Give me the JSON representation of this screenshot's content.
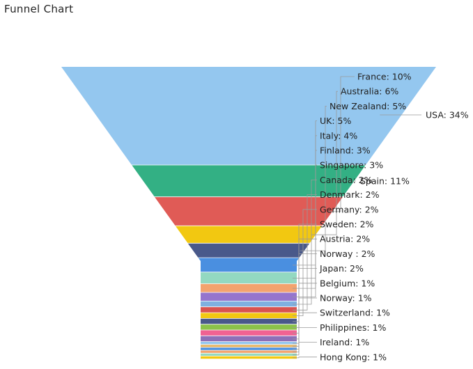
{
  "chart_data": {
    "type": "funnel",
    "title": "Funnel Chart",
    "data_labels": true,
    "legend": "none",
    "segments": [
      {
        "name": "USA",
        "value": 34,
        "label": "USA: 34%",
        "color": "#94c7ef"
      },
      {
        "name": "Spain",
        "value": 11,
        "label": "Spain: 11%",
        "color": "#33b084"
      },
      {
        "name": "France",
        "value": 10,
        "label": "France: 10%",
        "color": "#e05b56"
      },
      {
        "name": "Australia",
        "value": 6,
        "label": "Australia: 6%",
        "color": "#f2c811"
      },
      {
        "name": "New Zealand",
        "value": 5,
        "label": "New Zealand: 5%",
        "color": "#49598a"
      },
      {
        "name": "UK",
        "value": 5,
        "label": "UK: 5%",
        "color": "#4a8fe0"
      },
      {
        "name": "Italy",
        "value": 4,
        "label": "Italy: 4%",
        "color": "#93d9c1"
      },
      {
        "name": "Finland",
        "value": 3,
        "label": "Finland: 3%",
        "color": "#f3a36e"
      },
      {
        "name": "Singapore",
        "value": 3,
        "label": "Singapore: 3%",
        "color": "#9575cd"
      },
      {
        "name": "Canada",
        "value": 2,
        "label": "Canada: 2%",
        "color": "#7fb0e0"
      },
      {
        "name": "Denmark",
        "value": 2,
        "label": "Denmark: 2%",
        "color": "#d9534f"
      },
      {
        "name": "Germany",
        "value": 2,
        "label": "Germany: 2%",
        "color": "#f2c811"
      },
      {
        "name": "Sweden",
        "value": 2,
        "label": "Sweden: 2%",
        "color": "#49598a"
      },
      {
        "name": "Austria",
        "value": 2,
        "label": "Austria: 2%",
        "color": "#8bc34a"
      },
      {
        "name": "Norway ",
        "value": 2,
        "label": "Norway : 2%",
        "color": "#f06292"
      },
      {
        "name": "Japan",
        "value": 2,
        "label": "Japan: 2%",
        "color": "#8d6fb7"
      },
      {
        "name": "Belgium",
        "value": 1,
        "label": "Belgium: 1%",
        "color": "#94c7ef"
      },
      {
        "name": "Norway",
        "value": 1,
        "label": "Norway: 1%",
        "color": "#e8b563"
      },
      {
        "name": "Switzerland",
        "value": 1,
        "label": "Switzerland: 1%",
        "color": "#4a8fe0"
      },
      {
        "name": "Philippines",
        "value": 1,
        "label": "Philippines: 1%",
        "color": "#f3a36e"
      },
      {
        "name": "Ireland",
        "value": 1,
        "label": "Ireland: 1%",
        "color": "#93d9c1"
      },
      {
        "name": "Hong Kong",
        "value": 1,
        "label": "Hong Kong: 1%",
        "color": "#f2c811"
      }
    ]
  }
}
